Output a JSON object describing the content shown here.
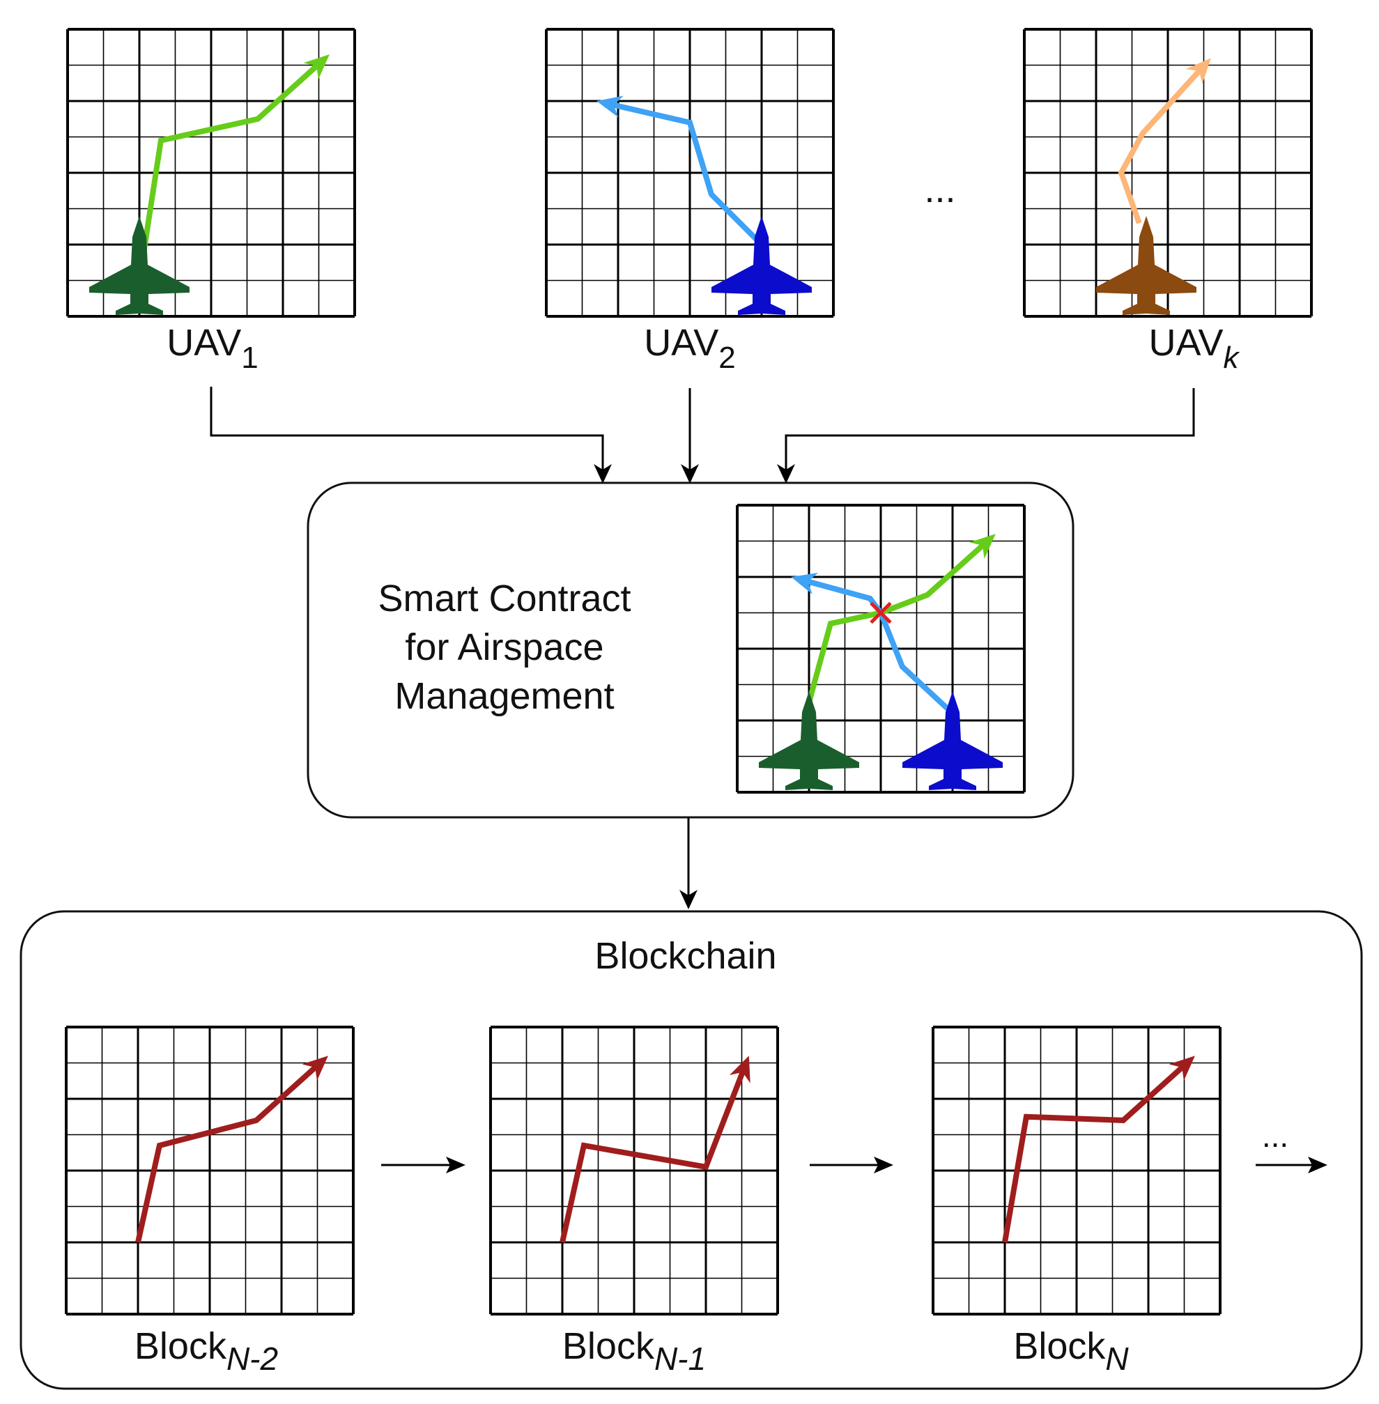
{
  "uavs": [
    {
      "label": "UAV",
      "sub": "1",
      "color": "#1b5e2e",
      "path_color": "#66cc1a",
      "path": [
        [
          2,
          7
        ],
        [
          2.6,
          3.1
        ],
        [
          5.3,
          2.5
        ],
        [
          7.3,
          0.7
        ]
      ]
    },
    {
      "label": "UAV",
      "sub": "2",
      "color": "#0c0ccc",
      "path_color": "#3ea2f5",
      "path": [
        [
          6,
          6
        ],
        [
          4.6,
          4.6
        ],
        [
          4,
          2.6
        ],
        [
          1.4,
          2
        ]
      ]
    },
    {
      "label": "UAV",
      "sub": "k",
      "color": "#8b4a10",
      "path_color": "#fdb678",
      "path": [
        [
          3.2,
          5.4
        ],
        [
          2.7,
          4
        ],
        [
          3.3,
          2.9
        ],
        [
          5.2,
          0.8
        ]
      ]
    }
  ],
  "ellipsis": "...",
  "contract": {
    "lines": [
      "Smart Contract",
      "for Airspace",
      "Management"
    ],
    "conflict_color": "#e02020",
    "grid_paths": [
      {
        "color": "#66cc1a",
        "path": [
          [
            2,
            5.5
          ],
          [
            2.6,
            3.3
          ],
          [
            4,
            3
          ],
          [
            5.3,
            2.5
          ],
          [
            7.2,
            0.8
          ]
        ]
      },
      {
        "color": "#3ea2f5",
        "path": [
          [
            6,
            5.8
          ],
          [
            4.6,
            4.5
          ],
          [
            4,
            3
          ],
          [
            3.7,
            2.6
          ],
          [
            1.5,
            2
          ]
        ]
      }
    ],
    "planes": [
      {
        "color": "#1b5e2e",
        "col": 2
      },
      {
        "color": "#0c0ccc",
        "col": 6
      }
    ],
    "conflict_at": [
      4,
      3
    ]
  },
  "blockchain": {
    "title": "Blockchain",
    "trail_color": "#a01d1d",
    "blocks": [
      {
        "label": "Block",
        "sub": "N-2",
        "path": [
          [
            2,
            6
          ],
          [
            2.6,
            3.3
          ],
          [
            5.3,
            2.6
          ],
          [
            7.3,
            0.8
          ]
        ]
      },
      {
        "label": "Block",
        "sub": "N-1",
        "path": [
          [
            2,
            6
          ],
          [
            2.6,
            3.3
          ],
          [
            6,
            3.9
          ],
          [
            7.2,
            0.8
          ]
        ]
      },
      {
        "label": "Block",
        "sub": "N",
        "path": [
          [
            2,
            6
          ],
          [
            2.6,
            2.5
          ],
          [
            5.3,
            2.6
          ],
          [
            7.3,
            0.8
          ]
        ]
      }
    ],
    "ellipsis": "..."
  }
}
